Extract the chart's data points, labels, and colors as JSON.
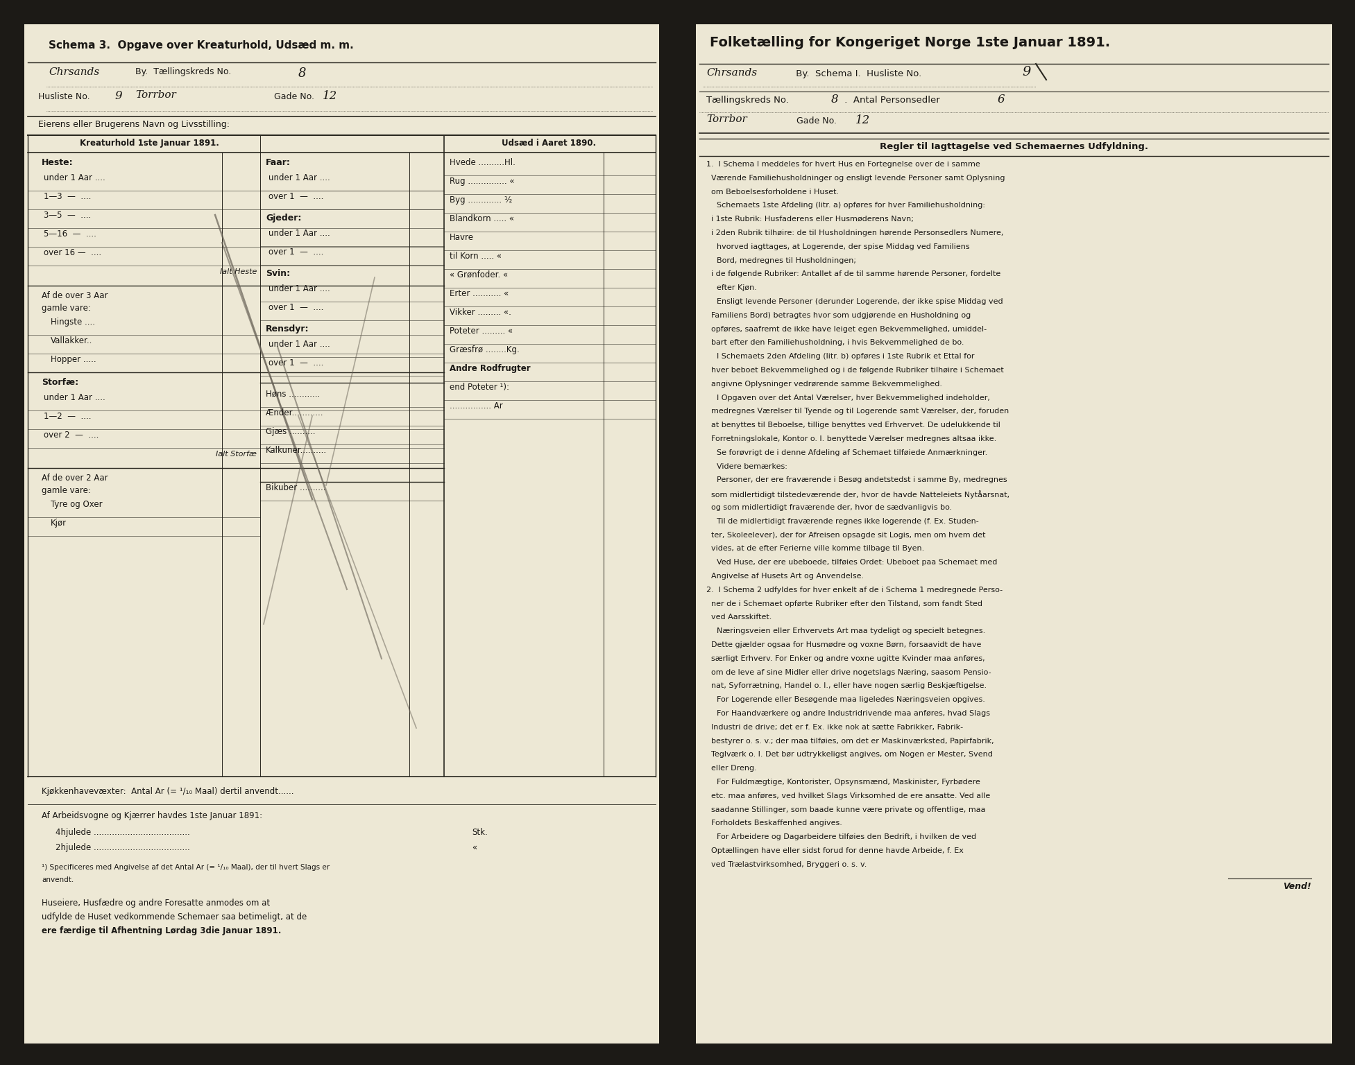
{
  "outer_bg": "#1c1a16",
  "page_bg_left": "#ede8d5",
  "page_bg_right": "#ece7d4",
  "border_color": "#3a3530",
  "text_color": "#1a1815",
  "hand_color": "#1a1815",
  "line_color": "#2a2820",
  "left_title": "Schema 3.  Opgave over Kreaturhold, Udsæd m. m.",
  "hand_city_left": "Chrsands",
  "printed_by_left": "By.  Tællingskreds No.",
  "hand_no_left": "8",
  "husliste_pre": "Husliste No.",
  "hand_husliste": "9",
  "hand_gade_name": "Torrbor",
  "gade_no_pre": "Gade No.",
  "hand_gade_no": "12",
  "eier_label": "Eierens eller Brugerens Navn og Livsstilling:",
  "kreatur_title": "Kreaturhold 1ste Januar 1891.",
  "udsaed_title": "Udsæd i Aaret 1890.",
  "right_title": "Folketælling for Kongeriget Norge 1ste Januar 1891.",
  "hand_city_right": "Chrsands",
  "printed_by_right": " By.  Schema I.  Husliste No.",
  "hand_husliste_right": "9",
  "taellingskreds_pre": "Tællingskreds No.",
  "hand_tkno": "8",
  "antal_pre": " .  Antal Personsedler",
  "hand_antal": "6",
  "hand_gade_name_right": "Torrbor",
  "gade_no_pre_right": "Gade No.",
  "hand_gade_no_right": "12",
  "regler_title": "Regler til Iagttagelse ved Schemaernes Udfyldning.",
  "regler_lines": [
    "1.  I Schema I meddeles for hvert Hus en Fortegnelse over de i samme",
    "Værende Familiehusholdninger og ensligt levende Personer samt Oplysning",
    "om Beboelsesforholdene i Huset.",
    "  Schemaets 1ste Afdeling (litr. a) opføres for hver Familiehusholdning:",
    "i 1ste Rubrik: Husfaderens eller Husmøderens Navn;",
    "i 2den Rubrik tilhøire: de til Husholdningen hørende Personsedlers Numere,",
    "     hvorved iagttages, at Logerende, der spise Middag ved Familiens",
    "     Bord, medregnes til Husholdningen;",
    "i de følgende Rubriker: Antallet af de til samme hørende Personer, fordelte",
    "     efter Kjøn.",
    "  Ensligt levende Personer (derunder Logerende, der ikke spise Middag ved",
    "Familiens Bord) betragtes hvor som udgjørende en Husholdning og",
    "opføres, saafremt de ikke have leiget egen Bekvemmelighed, umiddel-",
    "bart efter den Familiehusholdning, i hvis Bekvemmelighed de bo.",
    "  I Schemaets 2den Afdeling (litr. b) opføres i 1ste Rubrik et Ettal for",
    "hver beboet Bekvemmelighed og i de følgende Rubriker tilhøire i Schemaet",
    "angivne Oplysninger vedrørende samme Bekvemmelighed.",
    "  I Opgaven over det Antal Værelser, hver Bekvemmelighed indeholder,",
    "medregnes Værelser til Tyende og til Logerende samt Værelser, der, foruden",
    "at benyttes til Beboelse, tillige benyttes ved Erhvervet. De udelukkende til",
    "Forretningslokale, Kontor o. l. benyttede Værelser medregnes altsaa ikke.",
    "  Se forøvrigt de i denne Afdeling af Schemaet tilføiede Anmærkninger.",
    "  Videre bemærkes:",
    "  Personer, der ere fraværende i Besøg andetstedst i samme By, medregnes",
    "som midlertidigt tilstedeværende der, hvor de havde Natteleiets Nytåarsnat,",
    "og som midlertidigt fraværende der, hvor de sædvanligvis bo.",
    "  Til de midlertidigt fraværende regnes ikke logerende (f. Ex. Studen-",
    "ter, Skoleelever), der for Afreisen opsagde sit Logis, men om hvem det",
    "vides, at de efter Ferierne ville komme tilbage til Byen.",
    "  Ved Huse, der ere ubeboede, tilføies Ordet: Ubeboet paa Schemaet med",
    "Angivelse af Husets Art og Anvendelse.",
    "2.  I Schema 2 udfyldes for hver enkelt af de i Schema 1 medregnede Perso-",
    "ner de i Schemaet opførte Rubriker efter den Tilstand, som fandt Sted",
    "ved Aarsskiftet.",
    "  Næringsveien eller Erhvervets Art maa tydeligt og specielt betegnes.",
    "Dette gjælder ogsaa for Husmødre og voxne Børn, forsaavidt de have",
    "særligt Erhverv. For Enker og andre voxne ugitte Kvinder maa anføres,",
    "om de leve af sine Midler eller drive nogetslags Næring, saasom Pensio-",
    "nat, Syforrætning, Handel o. l., eller have nogen særlig Beskjæftigelse.",
    "  For Logerende eller Besøgende maa ligeledes Næringsveien opgives.",
    "  For Haandværkere og andre Industridrivende maa anføres, hvad Slags",
    "Industri de drive; det er f. Ex. ikke nok at sætte Fabrikker, Fabrik-",
    "bestyrer o. s. v.; der maa tilføies, om det er Maskinværksted, Papirfabrik,",
    "Teglværk o. l. Det bør udtrykkeligst angives, om Nogen er Mester, Svend",
    "eller Dreng.",
    "  For Fuldmægtige, Kontorister, Opsynsmænd, Maskinister, Fyrbødere",
    "etc. maa anføres, ved hvilket Slags Virksomhed de ere ansatte. Ved alle",
    "saadanne Stillinger, som baade kunne være private og offentlige, maa",
    "Forholdets Beskaffenhed angives.",
    "  For Arbeidere og Dagarbeidere tilføies den Bedrift, i hvilken de ved",
    "Optællingen have eller sidst forud for denne havde Arbeide, f. Ex",
    "ved Trælastvirksomhed, Bryggeri o. s. v."
  ],
  "vend": "Vend!",
  "kjoekken": "Kjøkkenhavevæxter:  Antal Ar (= ¹/₁₀ Maal) dertil anvendt......",
  "arbeid_header": "Af Arbeidsvogne og Kjærrer havdes 1ste Januar 1891:",
  "arbeid_4": "4hjulede .....................................",
  "arbeid_stk": "Stk.",
  "arbeid_2": "2hjulede .....................................",
  "arbeid_mark": "«",
  "footnote1": "¹) Specificeres med Angivelse af det Antal Ar (= ¹/₁₀ Maal), der til hvert Slags er",
  "footnote2": "anvendt.",
  "huseiere1": "Huseiere, Husfædre og andre Foresatte anmodes om at",
  "huseiere2": "udfylde de Huset vedkommende Schemaer saa betimeligt, at de",
  "huseiere3": "ere færdige til Afhentning Lørdag 3die Januar 1891."
}
